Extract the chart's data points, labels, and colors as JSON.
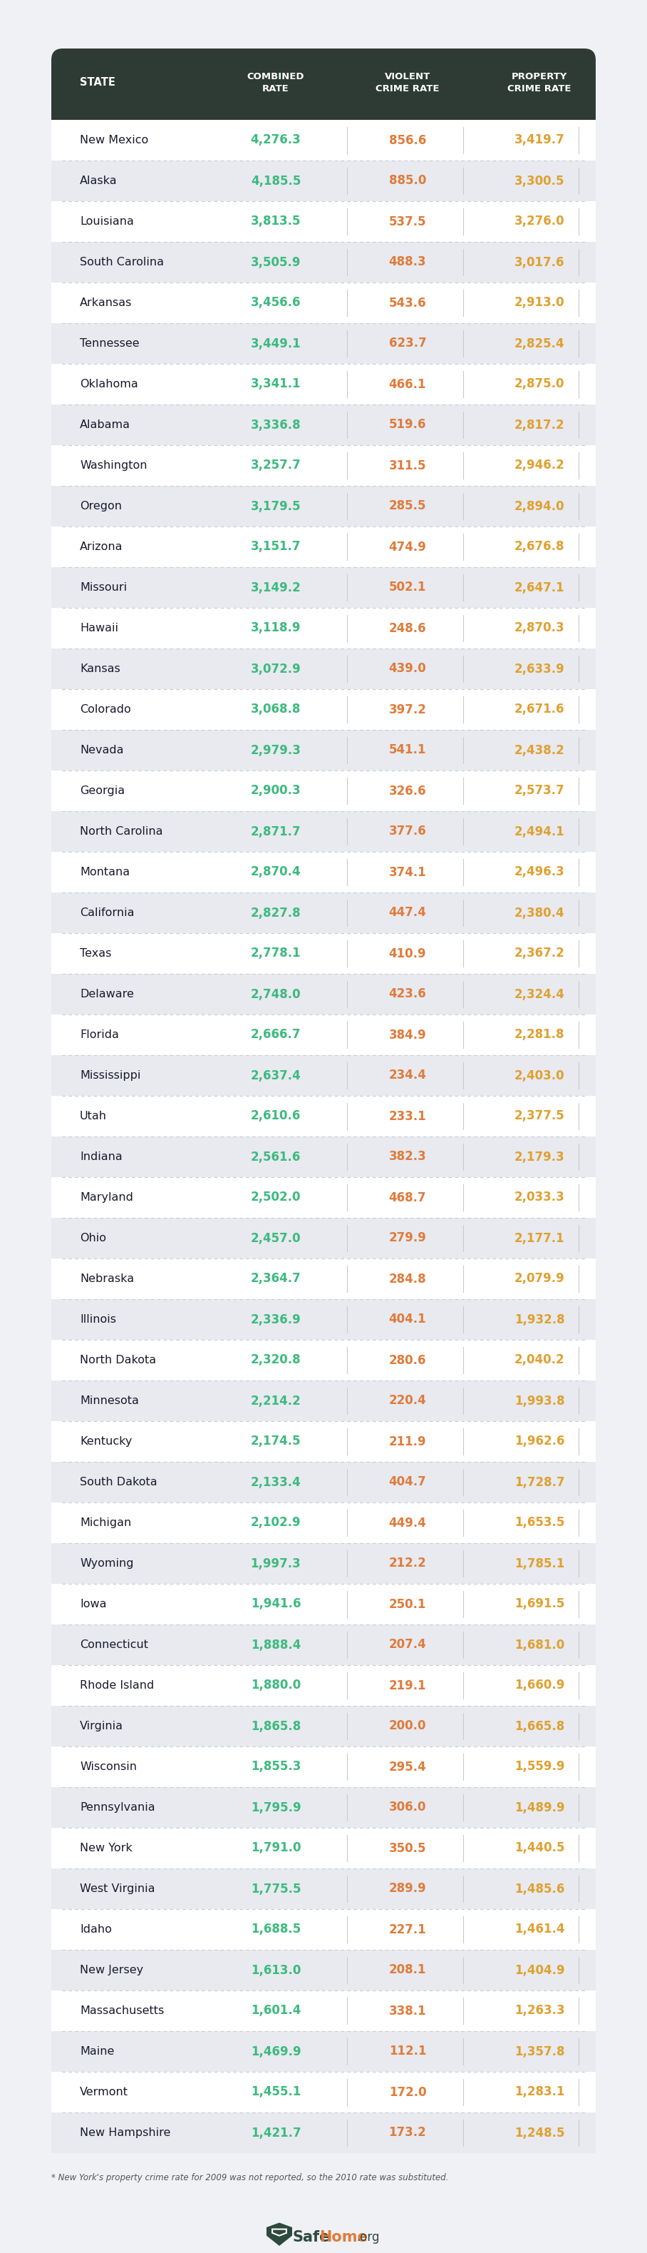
{
  "header_bg": "#2e3b35",
  "combined_color": "#3dba7e",
  "violent_color": "#e07b3a",
  "property_color": "#e0a030",
  "state_color": "#1a1a2e",
  "bg_color": "#f0f1f5",
  "row_bg_white": "#ffffff",
  "row_bg_gray": "#e8eaef",
  "divider_color": "#c8cad0",
  "footer_color": "#555555",
  "footer_text": "* New York's property crime rate for 2009 was not reported, so the 2010 rate was substituted.",
  "logo_safe": "Safe",
  "logo_home": "Home",
  "logo_org": ".org",
  "logo_color_safe": "#2d3436",
  "logo_color_home": "#e07b3a",
  "rows": [
    [
      "New Mexico",
      "4,276.3",
      "856.6",
      "3,419.7"
    ],
    [
      "Alaska",
      "4,185.5",
      "885.0",
      "3,300.5"
    ],
    [
      "Louisiana",
      "3,813.5",
      "537.5",
      "3,276.0"
    ],
    [
      "South Carolina",
      "3,505.9",
      "488.3",
      "3,017.6"
    ],
    [
      "Arkansas",
      "3,456.6",
      "543.6",
      "2,913.0"
    ],
    [
      "Tennessee",
      "3,449.1",
      "623.7",
      "2,825.4"
    ],
    [
      "Oklahoma",
      "3,341.1",
      "466.1",
      "2,875.0"
    ],
    [
      "Alabama",
      "3,336.8",
      "519.6",
      "2,817.2"
    ],
    [
      "Washington",
      "3,257.7",
      "311.5",
      "2,946.2"
    ],
    [
      "Oregon",
      "3,179.5",
      "285.5",
      "2,894.0"
    ],
    [
      "Arizona",
      "3,151.7",
      "474.9",
      "2,676.8"
    ],
    [
      "Missouri",
      "3,149.2",
      "502.1",
      "2,647.1"
    ],
    [
      "Hawaii",
      "3,118.9",
      "248.6",
      "2,870.3"
    ],
    [
      "Kansas",
      "3,072.9",
      "439.0",
      "2,633.9"
    ],
    [
      "Colorado",
      "3,068.8",
      "397.2",
      "2,671.6"
    ],
    [
      "Nevada",
      "2,979.3",
      "541.1",
      "2,438.2"
    ],
    [
      "Georgia",
      "2,900.3",
      "326.6",
      "2,573.7"
    ],
    [
      "North Carolina",
      "2,871.7",
      "377.6",
      "2,494.1"
    ],
    [
      "Montana",
      "2,870.4",
      "374.1",
      "2,496.3"
    ],
    [
      "California",
      "2,827.8",
      "447.4",
      "2,380.4"
    ],
    [
      "Texas",
      "2,778.1",
      "410.9",
      "2,367.2"
    ],
    [
      "Delaware",
      "2,748.0",
      "423.6",
      "2,324.4"
    ],
    [
      "Florida",
      "2,666.7",
      "384.9",
      "2,281.8"
    ],
    [
      "Mississippi",
      "2,637.4",
      "234.4",
      "2,403.0"
    ],
    [
      "Utah",
      "2,610.6",
      "233.1",
      "2,377.5"
    ],
    [
      "Indiana",
      "2,561.6",
      "382.3",
      "2,179.3"
    ],
    [
      "Maryland",
      "2,502.0",
      "468.7",
      "2,033.3"
    ],
    [
      "Ohio",
      "2,457.0",
      "279.9",
      "2,177.1"
    ],
    [
      "Nebraska",
      "2,364.7",
      "284.8",
      "2,079.9"
    ],
    [
      "Illinois",
      "2,336.9",
      "404.1",
      "1,932.8"
    ],
    [
      "North Dakota",
      "2,320.8",
      "280.6",
      "2,040.2"
    ],
    [
      "Minnesota",
      "2,214.2",
      "220.4",
      "1,993.8"
    ],
    [
      "Kentucky",
      "2,174.5",
      "211.9",
      "1,962.6"
    ],
    [
      "South Dakota",
      "2,133.4",
      "404.7",
      "1,728.7"
    ],
    [
      "Michigan",
      "2,102.9",
      "449.4",
      "1,653.5"
    ],
    [
      "Wyoming",
      "1,997.3",
      "212.2",
      "1,785.1"
    ],
    [
      "Iowa",
      "1,941.6",
      "250.1",
      "1,691.5"
    ],
    [
      "Connecticut",
      "1,888.4",
      "207.4",
      "1,681.0"
    ],
    [
      "Rhode Island",
      "1,880.0",
      "219.1",
      "1,660.9"
    ],
    [
      "Virginia",
      "1,865.8",
      "200.0",
      "1,665.8"
    ],
    [
      "Wisconsin",
      "1,855.3",
      "295.4",
      "1,559.9"
    ],
    [
      "Pennsylvania",
      "1,795.9",
      "306.0",
      "1,489.9"
    ],
    [
      "New York",
      "1,791.0",
      "350.5",
      "1,440.5"
    ],
    [
      "West Virginia",
      "1,775.5",
      "289.9",
      "1,485.6"
    ],
    [
      "Idaho",
      "1,688.5",
      "227.1",
      "1,461.4"
    ],
    [
      "New Jersey",
      "1,613.0",
      "208.1",
      "1,404.9"
    ],
    [
      "Massachusetts",
      "1,601.4",
      "338.1",
      "1,263.3"
    ],
    [
      "Maine",
      "1,469.9",
      "112.1",
      "1,357.8"
    ],
    [
      "Vermont",
      "1,455.1",
      "172.0",
      "1,283.1"
    ],
    [
      "New Hampshire",
      "1,421.7",
      "173.2",
      "1,248.5"
    ]
  ]
}
